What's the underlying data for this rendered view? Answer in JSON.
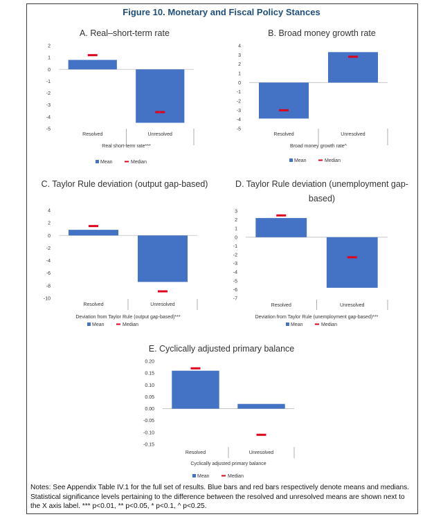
{
  "figure_title": "Figure 10. Monetary and Fiscal Policy Stances",
  "colors": {
    "mean_bar": "#4472c4",
    "median_mark": "#e0001b",
    "title": "#1f4e79"
  },
  "legend": {
    "mean": "Mean",
    "median": "Median"
  },
  "notes": "Notes: See Appendix Table IV.1 for the full set of results. Blue bars and red bars respectively denote means and medians. Statistical significance levels pertaining to the difference between the resolved and unresolved means are shown next to the X axis label. *** p<0.01, ** p<0.05, * p<0.1, ^ p<0.25.",
  "chart_data": [
    {
      "type": "bar",
      "title": "A. Real–short-term rate",
      "title_lines": [
        "A. Real–short-term rate"
      ],
      "xlabel": "Real short-term rate***",
      "categories": [
        "Resolved",
        "Unresolved"
      ],
      "series": [
        {
          "name": "Mean",
          "values": [
            0.8,
            -4.5
          ]
        },
        {
          "name": "Median",
          "values": [
            1.2,
            -3.6
          ]
        }
      ],
      "ylim": [
        -5,
        2
      ],
      "yticks": [
        2,
        1,
        0,
        -1,
        -2,
        -3,
        -4,
        -5
      ],
      "ytick_labels": [
        "2",
        "1",
        "0",
        "-1",
        "-2",
        "-3",
        "-4",
        "-5"
      ]
    },
    {
      "type": "bar",
      "title": "B. Broad money growth rate",
      "title_lines": [
        "B. Broad money growth rate"
      ],
      "xlabel": "Broad money growth rate^",
      "categories": [
        "Resolved",
        "Unresolved"
      ],
      "series": [
        {
          "name": "Mean",
          "values": [
            -3.9,
            3.3
          ]
        },
        {
          "name": "Median",
          "values": [
            -3.0,
            2.8
          ]
        }
      ],
      "ylim": [
        -5,
        4
      ],
      "yticks": [
        4,
        3,
        2,
        1,
        0,
        -1,
        -2,
        -3,
        -4,
        -5
      ],
      "ytick_labels": [
        "4",
        "3",
        "2",
        "1",
        "0",
        "-1",
        "-2",
        "-3",
        "-4",
        "-5"
      ]
    },
    {
      "type": "bar",
      "title": "C. Taylor Rule deviation (output gap-based)",
      "title_lines": [
        "C. Taylor Rule deviation (output gap-based)"
      ],
      "xlabel": "Deviation from Taylor Rule (output gap-based)***",
      "categories": [
        "Resolved",
        "Unresolved"
      ],
      "series": [
        {
          "name": "Mean",
          "values": [
            0.9,
            -7.4
          ]
        },
        {
          "name": "Median",
          "values": [
            1.5,
            -8.9
          ]
        }
      ],
      "ylim": [
        -10,
        4
      ],
      "yticks": [
        4,
        2,
        0,
        -2,
        -4,
        -6,
        -8,
        -10
      ],
      "ytick_labels": [
        "4",
        "2",
        "0",
        "-2",
        "-4",
        "-6",
        "-8",
        "-10"
      ]
    },
    {
      "type": "bar",
      "title": "D. Taylor Rule deviation (unemployment gap-based)",
      "title_lines": [
        "D. Taylor Rule deviation (unemployment gap-",
        "based)"
      ],
      "xlabel": "Deviation from Taylor Rule (unemployment gap-based)***",
      "categories": [
        "Resolved",
        "Unresolved"
      ],
      "series": [
        {
          "name": "Mean",
          "values": [
            2.2,
            -5.8
          ]
        },
        {
          "name": "Median",
          "values": [
            2.5,
            -2.3
          ]
        }
      ],
      "ylim": [
        -7,
        3
      ],
      "yticks": [
        3,
        2,
        1,
        0,
        -1,
        -2,
        -3,
        -4,
        -5,
        -6,
        -7
      ],
      "ytick_labels": [
        "3",
        "2",
        "1",
        "0",
        "-1",
        "-2",
        "-3",
        "-4",
        "-5",
        "-6",
        "-7"
      ]
    },
    {
      "type": "bar",
      "title": "E. Cyclically adjusted primary balance",
      "title_lines": [
        "E. Cyclically adjusted primary balance"
      ],
      "xlabel": "Cyclically adjusted primary balance",
      "categories": [
        "Resolved",
        "Unresolved"
      ],
      "series": [
        {
          "name": "Mean",
          "values": [
            0.16,
            0.02
          ]
        },
        {
          "name": "Median",
          "values": [
            0.17,
            -0.11
          ]
        }
      ],
      "ylim": [
        -0.15,
        0.2
      ],
      "yticks": [
        0.2,
        0.15,
        0.1,
        0.05,
        0.0,
        -0.05,
        -0.1,
        -0.15
      ],
      "ytick_labels": [
        "0.20",
        "0.15",
        "0.10",
        "0.05",
        "0.00",
        "-0.05",
        "-0.10",
        "-0.15"
      ]
    }
  ]
}
